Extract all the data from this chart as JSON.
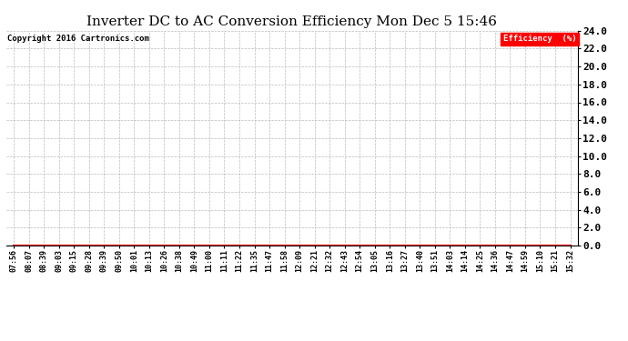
{
  "title": "Inverter DC to AC Conversion Efficiency Mon Dec 5 15:46",
  "copyright_text": "Copyright 2016 Cartronics.com",
  "legend_label": "Efficiency  (%)",
  "legend_bg": "#ff0000",
  "legend_fg": "#ffffff",
  "x_labels": [
    "07:56",
    "08:07",
    "08:39",
    "09:03",
    "09:15",
    "09:28",
    "09:39",
    "09:50",
    "10:01",
    "10:13",
    "10:26",
    "10:38",
    "10:49",
    "11:00",
    "11:11",
    "11:22",
    "11:35",
    "11:47",
    "11:58",
    "12:09",
    "12:21",
    "12:32",
    "12:43",
    "12:54",
    "13:05",
    "13:16",
    "13:27",
    "13:40",
    "13:51",
    "14:03",
    "14:14",
    "14:25",
    "14:36",
    "14:47",
    "14:59",
    "15:10",
    "15:21",
    "15:32"
  ],
  "y_values": [
    0,
    0,
    0,
    0,
    0,
    0,
    0,
    0,
    0,
    0,
    0,
    0,
    0,
    0,
    0,
    0,
    0,
    0,
    0,
    0,
    0,
    0,
    0,
    0,
    0,
    0,
    0,
    0,
    0,
    0,
    0,
    0,
    0,
    0,
    0,
    0,
    0,
    0
  ],
  "ylim_min": 0.0,
  "ylim_max": 24.0,
  "yticks": [
    0.0,
    2.0,
    4.0,
    6.0,
    8.0,
    10.0,
    12.0,
    14.0,
    16.0,
    18.0,
    20.0,
    22.0,
    24.0
  ],
  "line_color": "#ff0000",
  "grid_color": "#bbbbbb",
  "bg_color": "#ffffff",
  "title_fontsize": 11,
  "copyright_fontsize": 6.5,
  "ytick_fontsize": 8,
  "xtick_fontsize": 6
}
